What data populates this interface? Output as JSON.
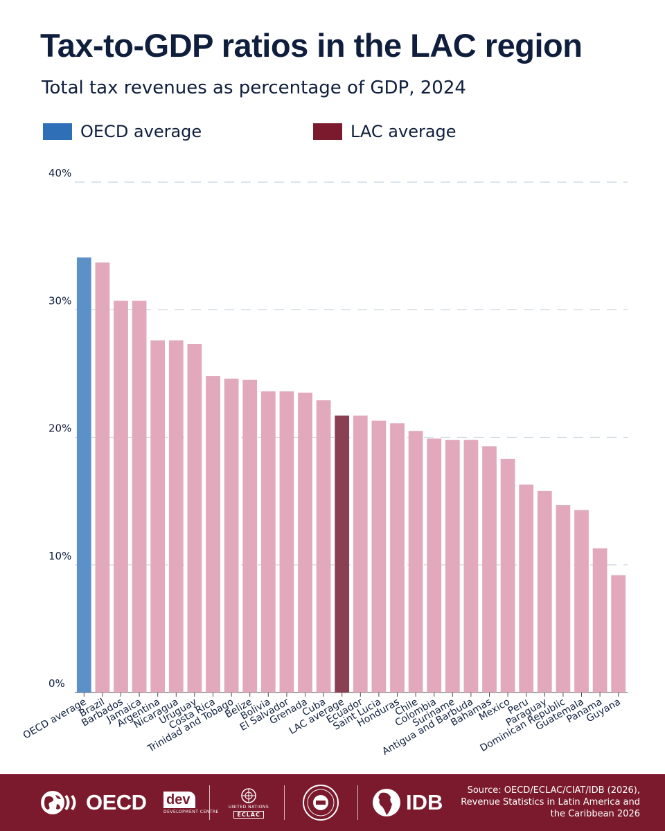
{
  "title": "Tax-to-GDP ratios in the LAC region",
  "subtitle": "Total tax revenues as percentage of GDP, 2024",
  "legend": [
    {
      "label": "OECD average",
      "color": "#2e6fb8"
    },
    {
      "label": "LAC average",
      "color": "#7a1a2c"
    }
  ],
  "colors": {
    "oecd_bar": "#5b90c8",
    "lac_bar": "#8a3f52",
    "country_bar": "#e1a9bb",
    "grid": "#c8d4e2",
    "axis": "#4a4a4a",
    "text": "#0f1e3d",
    "footer": "#7a1a2c"
  },
  "chart_data": {
    "type": "bar",
    "title": "Tax-to-GDP ratios in the LAC region",
    "subtitle": "Total tax revenues as percentage of GDP, 2024",
    "xlabel": "",
    "ylabel": "",
    "ylim": [
      0,
      40
    ],
    "yticks": [
      0,
      10,
      20,
      30,
      40
    ],
    "ytick_labels": [
      "0%",
      "10%",
      "20%",
      "30%",
      "40%"
    ],
    "grid": true,
    "legend_position": "top-left",
    "categories": [
      "OECD average",
      "Brazil",
      "Barbados",
      "Jamaica",
      "Argentina",
      "Nicaragua",
      "Uruguay",
      "Costa Rica",
      "Trinidad and Tobago",
      "Belize",
      "Bolivia",
      "El Salvador",
      "Grenada",
      "Cuba",
      "LAC average",
      "Ecuador",
      "Saint Lucia",
      "Honduras",
      "Chile",
      "Colombia",
      "Suriname",
      "Antigua and Barbuda",
      "Bahamas",
      "Mexico",
      "Peru",
      "Paraguay",
      "Dominican Republic",
      "Guatemala",
      "Panama",
      "Guyana"
    ],
    "values": [
      34.1,
      33.7,
      30.7,
      30.7,
      27.6,
      27.6,
      27.3,
      24.8,
      24.6,
      24.5,
      23.6,
      23.6,
      23.5,
      22.9,
      21.7,
      21.7,
      21.3,
      21.1,
      20.5,
      19.9,
      19.8,
      19.8,
      19.3,
      18.3,
      16.3,
      15.8,
      14.7,
      14.3,
      11.3,
      9.2
    ],
    "highlight": {
      "OECD average": "oecd",
      "LAC average": "lac"
    }
  },
  "footer": {
    "oecd_logo": "OECD",
    "dev_logo": "dev",
    "dev_sub": "DEVELOPMENT CENTRE",
    "eclac_sub": "UNITED NATIONS",
    "eclac_logo": "ECLAC",
    "idb_logo": "IDB",
    "source_lines": [
      "Source: OECD/ECLAC/CIAT/IDB (2026),",
      "Revenue Statistics in Latin America and",
      "the Caribbean 2026"
    ]
  }
}
